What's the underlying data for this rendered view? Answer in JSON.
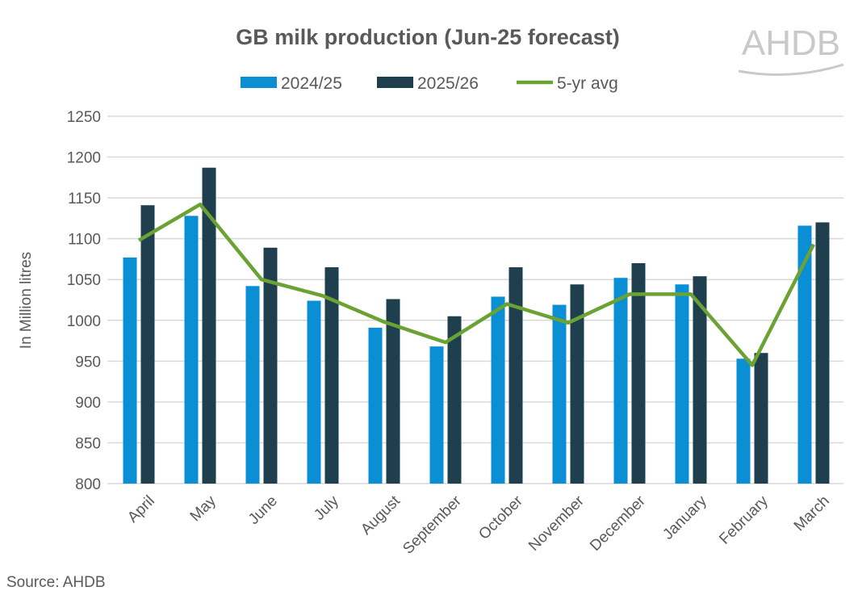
{
  "chart_data": {
    "type": "bar",
    "title": "GB milk production (Jun-25 forecast)",
    "ylabel": "In Million litres",
    "xlabel": "",
    "ylim": [
      800,
      1250
    ],
    "yticks": [
      800,
      850,
      900,
      950,
      1000,
      1050,
      1100,
      1150,
      1200,
      1250
    ],
    "grid": true,
    "legend_position": "top",
    "categories": [
      "April",
      "May",
      "June",
      "July",
      "August",
      "September",
      "October",
      "November",
      "December",
      "January",
      "February",
      "March"
    ],
    "series": [
      {
        "name": "2024/25",
        "kind": "bar",
        "color": "#0a8fd4",
        "values": [
          1077,
          1128,
          1042,
          1024,
          991,
          968,
          1029,
          1019,
          1052,
          1044,
          953,
          1116
        ]
      },
      {
        "name": "2025/26",
        "kind": "bar",
        "color": "#1f3f4f",
        "values": [
          1141,
          1187,
          1089,
          1065,
          1026,
          1005,
          1065,
          1044,
          1070,
          1054,
          960,
          1120
        ]
      },
      {
        "name": "5-yr avg",
        "kind": "line",
        "color": "#6aa234",
        "values": [
          1098,
          1142,
          1050,
          1030,
          998,
          973,
          1020,
          997,
          1032,
          1032,
          945,
          1093
        ]
      }
    ],
    "source": "Source: AHDB"
  },
  "logo": "AHDB"
}
